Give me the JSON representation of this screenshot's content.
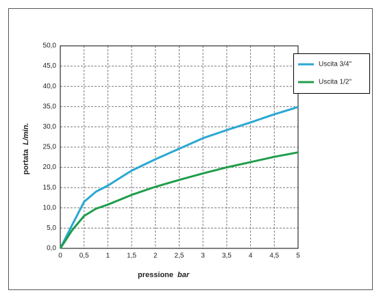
{
  "chart_data": {
    "type": "line",
    "x_label": "pressione",
    "x_unit": "bar",
    "y_label": "portata",
    "y_unit": "L/min.",
    "x": [
      0,
      0.25,
      0.5,
      0.75,
      1,
      1.5,
      2,
      2.5,
      3,
      3.5,
      4,
      4.5,
      5
    ],
    "series": [
      {
        "name": "Uscita 3/4\"",
        "color": "#2aa7d3",
        "values": [
          0,
          5.8,
          11.5,
          14,
          15.5,
          19.2,
          22,
          24.6,
          27.2,
          29.2,
          31.1,
          33.1,
          34.9
        ]
      },
      {
        "name": "Uscita 1/2\"",
        "color": "#1f9d4b",
        "values": [
          0,
          4.5,
          8,
          9.8,
          10.8,
          13.2,
          15.2,
          16.9,
          18.5,
          20,
          21.3,
          22.6,
          23.7
        ]
      }
    ],
    "xlim": [
      0,
      5
    ],
    "xticks": [
      0,
      {
        "value": 0.5,
        "label": "0,5"
      },
      1,
      {
        "value": 1.5,
        "label": "1,5"
      },
      2,
      {
        "value": 2.5,
        "label": "2,5"
      },
      3,
      {
        "value": 3.5,
        "label": "3,5"
      },
      4,
      {
        "value": 4.5,
        "label": "4,5"
      },
      5
    ],
    "ylim": [
      0,
      50
    ],
    "yticks": [
      {
        "value": 0,
        "label": "0,0"
      },
      {
        "value": 5,
        "label": "5,0"
      },
      {
        "value": 10,
        "label": "10,0"
      },
      {
        "value": 15,
        "label": "15,0"
      },
      {
        "value": 20,
        "label": "20,0"
      },
      {
        "value": 25,
        "label": "25,0"
      },
      {
        "value": 30,
        "label": "30,0"
      },
      {
        "value": 35,
        "label": "35,0"
      },
      {
        "value": 40,
        "label": "40,0"
      },
      {
        "value": 45,
        "label": "45,0"
      },
      {
        "value": 50,
        "label": "50,0"
      }
    ],
    "grid": true,
    "legend": "top-right"
  }
}
